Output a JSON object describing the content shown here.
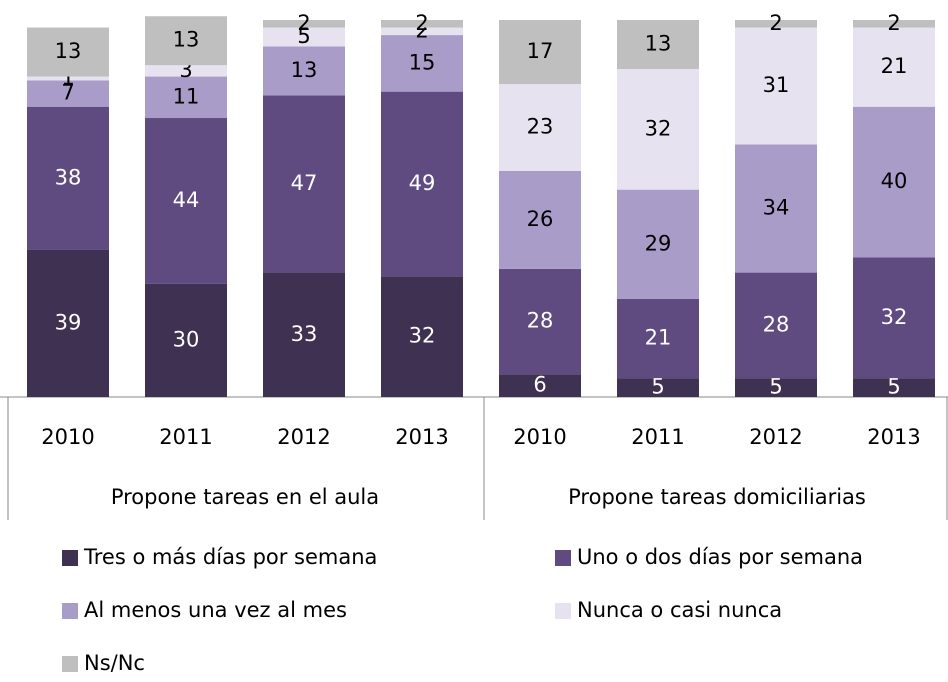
{
  "chart_data": {
    "type": "stacked_bar",
    "categories": [
      "2010",
      "2011",
      "2012",
      "2013",
      "2010",
      "2011",
      "2012",
      "2013"
    ],
    "groups": [
      "Propone tareas en el aula",
      "Propone tareas domiciliarias"
    ],
    "series": [
      {
        "name": "Tres o más días por semana",
        "color": "#3f3151",
        "values": [
          39,
          30,
          33,
          32,
          6,
          5,
          5,
          5
        ]
      },
      {
        "name": "Uno o dos días por semana",
        "color": "#5f4b80",
        "values": [
          38,
          44,
          47,
          49,
          28,
          21,
          28,
          32
        ]
      },
      {
        "name": "Al menos una vez al mes",
        "color": "#a99cc9",
        "values": [
          7,
          11,
          13,
          15,
          26,
          29,
          34,
          40
        ]
      },
      {
        "name": "Nunca o casi nunca",
        "color": "#e7e2ef",
        "values": [
          1,
          3,
          5,
          2,
          23,
          32,
          31,
          21
        ]
      },
      {
        "name": "Ns/Nc",
        "color": "#bfbfbf",
        "values": [
          13,
          13,
          2,
          2,
          17,
          13,
          2,
          2
        ]
      }
    ],
    "ylim": [
      0,
      100
    ]
  }
}
